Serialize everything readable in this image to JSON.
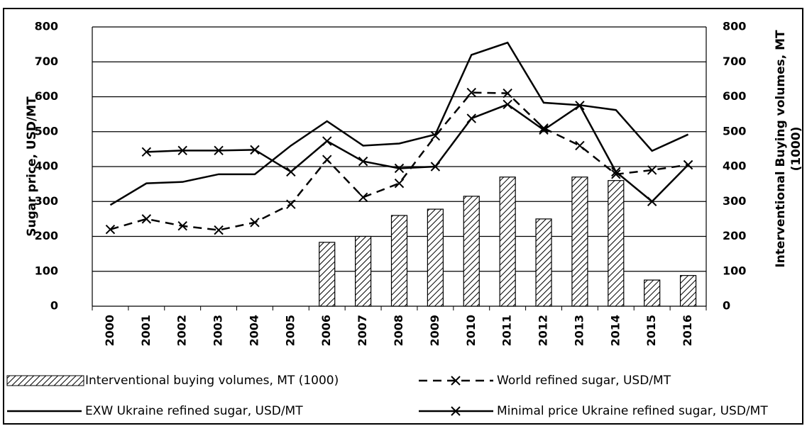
{
  "chart_data": {
    "type": "bar-line",
    "ylabel": "Sugar price,  USD/MT",
    "y2label": [
      "Interventional  Buying volumes, MT",
      "(1000)"
    ],
    "categories": [
      "2000",
      "2001",
      "2002",
      "2003",
      "2004",
      "2005",
      "2006",
      "2007",
      "2008",
      "2009",
      "2010",
      "2011",
      "2012",
      "2013",
      "2014",
      "2015",
      "2016"
    ],
    "ylim": [
      0,
      800
    ],
    "yticks": [
      0,
      100,
      200,
      300,
      400,
      500,
      600,
      700,
      800
    ],
    "y2lim": [
      0,
      800
    ],
    "y2ticks": [
      0,
      100,
      200,
      300,
      400,
      500,
      600,
      700,
      800
    ],
    "grid": true,
    "legend": "bottom",
    "series": [
      {
        "name": "Interventional buying volumes, MT (1000)",
        "kind": "bar",
        "pattern": "hatch",
        "color": "#000000",
        "axis": "y2",
        "values": [
          null,
          null,
          null,
          null,
          null,
          null,
          183,
          200,
          260,
          278,
          315,
          370,
          250,
          370,
          360,
          75,
          88
        ]
      },
      {
        "name": "World refined sugar, USD/MT",
        "kind": "line",
        "dash": true,
        "marker": "x",
        "color": "#000000",
        "values": [
          220,
          250,
          230,
          218,
          240,
          292,
          420,
          312,
          352,
          488,
          612,
          610,
          510,
          460,
          378,
          390,
          405
        ]
      },
      {
        "name": "EXW Ukraine refined sugar, USD/MT",
        "kind": "line",
        "dash": false,
        "marker": "none",
        "color": "#000000",
        "values": [
          290,
          352,
          356,
          378,
          378,
          460,
          530,
          460,
          466,
          492,
          720,
          755,
          583,
          576,
          562,
          445,
          492
        ]
      },
      {
        "name": "Minimal price Ukraine refined sugar, USD/MT",
        "kind": "line",
        "dash": false,
        "marker": "x",
        "color": "#000000",
        "values": [
          null,
          442,
          446,
          446,
          448,
          385,
          473,
          415,
          395,
          400,
          538,
          578,
          505,
          575,
          385,
          300,
          405
        ]
      }
    ]
  }
}
